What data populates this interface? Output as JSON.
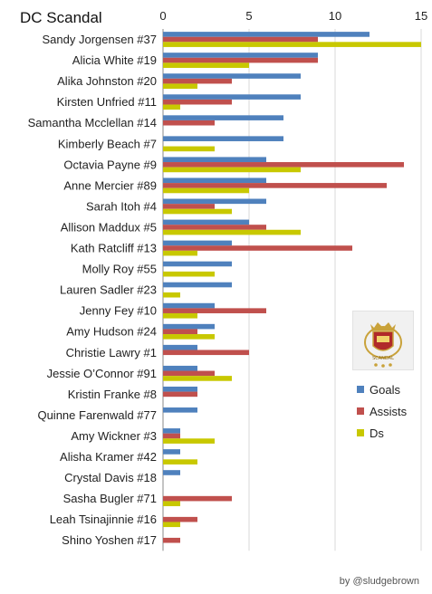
{
  "title": "DC Scandal",
  "credit": "by @sludgebrown",
  "logo_name": "scandal-crest-logo",
  "chart_data": {
    "type": "bar",
    "orientation": "horizontal",
    "title": "DC Scandal",
    "xlim": [
      0,
      15
    ],
    "xticks": [
      0,
      5,
      10,
      15
    ],
    "grid": true,
    "legend_position": "right",
    "categories": [
      "Sandy Jorgensen #37",
      "Alicia White #19",
      "Alika Johnston #20",
      "Kirsten Unfried #11",
      "Samantha Mcclellan #14",
      "Kimberly Beach #7",
      "Octavia Payne #9",
      "Anne Mercier #89",
      "Sarah Itoh #4",
      "Allison Maddux #5",
      "Kath Ratcliff #13",
      "Molly Roy #55",
      "Lauren Sadler #23",
      "Jenny Fey #10",
      "Amy Hudson #24",
      "Christie Lawry #1",
      "Jessie O’Connor #91",
      "Kristin Franke #8",
      "Quinne Farenwald #77",
      "Amy Wickner #3",
      "Alisha Kramer #42",
      "Crystal Davis #18",
      "Sasha Bugler #71",
      "Leah Tsinajinnie #16",
      "Shino Yoshen #17"
    ],
    "series": [
      {
        "name": "Goals",
        "color": "#4f81bd",
        "values": [
          12,
          9,
          8,
          8,
          7,
          7,
          6,
          6,
          6,
          5,
          4,
          4,
          4,
          3,
          3,
          2,
          2,
          2,
          2,
          1,
          1,
          1,
          0,
          0,
          0
        ]
      },
      {
        "name": "Assists",
        "color": "#c0504d",
        "values": [
          9,
          9,
          4,
          4,
          3,
          0,
          14,
          13,
          3,
          6,
          11,
          0,
          0,
          6,
          2,
          5,
          3,
          2,
          0,
          1,
          0,
          0,
          4,
          2,
          1
        ]
      },
      {
        "name": "Ds",
        "color": "#c8c800",
        "values": [
          15,
          5,
          2,
          1,
          0,
          3,
          8,
          5,
          4,
          8,
          2,
          3,
          1,
          2,
          3,
          0,
          4,
          0,
          0,
          3,
          2,
          0,
          1,
          1,
          0
        ]
      }
    ]
  }
}
